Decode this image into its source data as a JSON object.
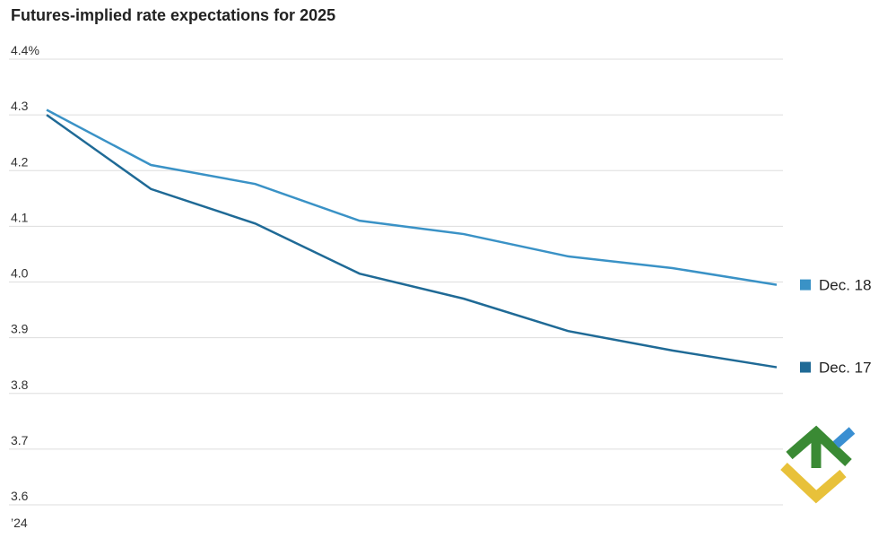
{
  "chart_data": {
    "type": "line",
    "title": "Futures-implied rate expectations for 2025",
    "categories": [
      "’24",
      null,
      null,
      null,
      null,
      null,
      null,
      null
    ],
    "series": [
      {
        "name": "Dec. 18",
        "color": "#3a92c6",
        "values": [
          4.309,
          4.21,
          4.176,
          4.11,
          4.086,
          4.046,
          4.025,
          3.995
        ]
      },
      {
        "name": "Dec. 17",
        "color": "#1f6a96",
        "values": [
          4.3,
          4.167,
          4.105,
          4.015,
          3.97,
          3.912,
          3.877,
          3.847
        ]
      }
    ],
    "ylim": [
      3.6,
      4.4
    ],
    "yticks": [
      {
        "value": 4.4,
        "label": "4.4%"
      },
      4.3,
      4.2,
      4.1,
      {
        "value": 4,
        "label": "4.0"
      },
      3.9,
      3.8,
      3.7,
      3.6
    ],
    "grid": true
  }
}
